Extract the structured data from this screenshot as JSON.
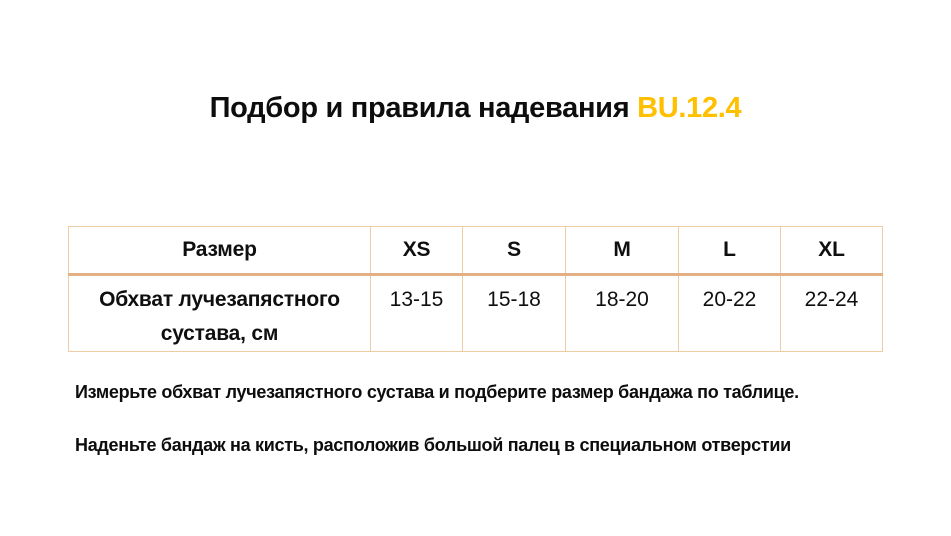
{
  "title": {
    "text": "Подбор и правила надевания ",
    "highlight": "BU.12.4"
  },
  "colors": {
    "highlight_gold": "#FFC000",
    "table_border_light": "#EFCDA4",
    "table_border_accent": "#E2B083"
  },
  "table": {
    "header": [
      "Размер",
      "XS",
      "S",
      "M",
      "L",
      "XL"
    ],
    "rows": [
      {
        "label": "Обхват лучезапястного сустава, см",
        "values": [
          "13-15",
          "15-18",
          "18-20",
          "20-22",
          "22-24"
        ]
      }
    ]
  },
  "instructions": [
    "Измерьте обхват лучезапястного сустава и подберите размер бандажа по таблице.",
    "Наденьте бандаж на кисть, расположив большой палец в специальном отверстии"
  ]
}
